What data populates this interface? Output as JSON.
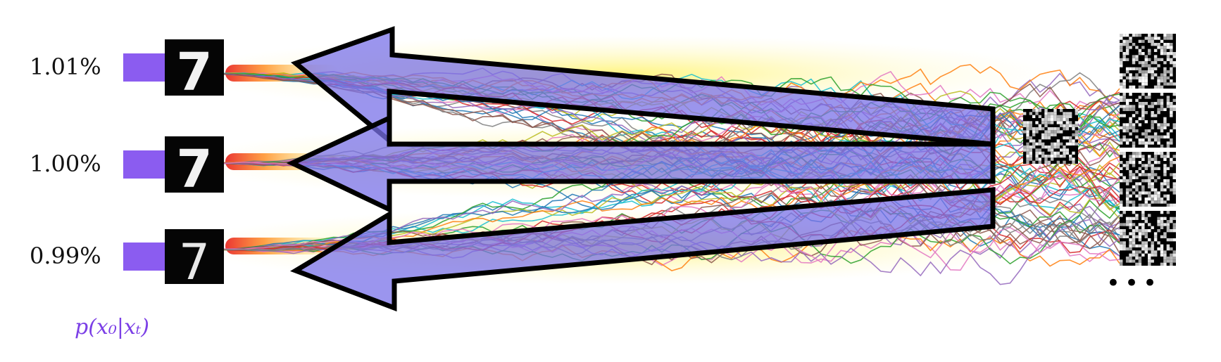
{
  "samples": [
    {
      "probability_label": "1.01%",
      "digit": "7"
    },
    {
      "probability_label": "1.00%",
      "digit": "7"
    },
    {
      "probability_label": "0.99%",
      "digit": "7"
    }
  ],
  "posterior_label": "p(x₀|xₜ)",
  "ellipsis": "•••",
  "colors": {
    "probability_bar": "#8b5cf0",
    "arrow_fill": "#7a72e8",
    "arrow_stroke": "#000000",
    "formula": "#7b3fe6",
    "path_palette": [
      "#1f77b4",
      "#ff7f0e",
      "#2ca02c",
      "#d62728",
      "#9467bd",
      "#8c564b",
      "#e377c2",
      "#7f7f7f",
      "#bcbd22",
      "#17becf"
    ]
  }
}
